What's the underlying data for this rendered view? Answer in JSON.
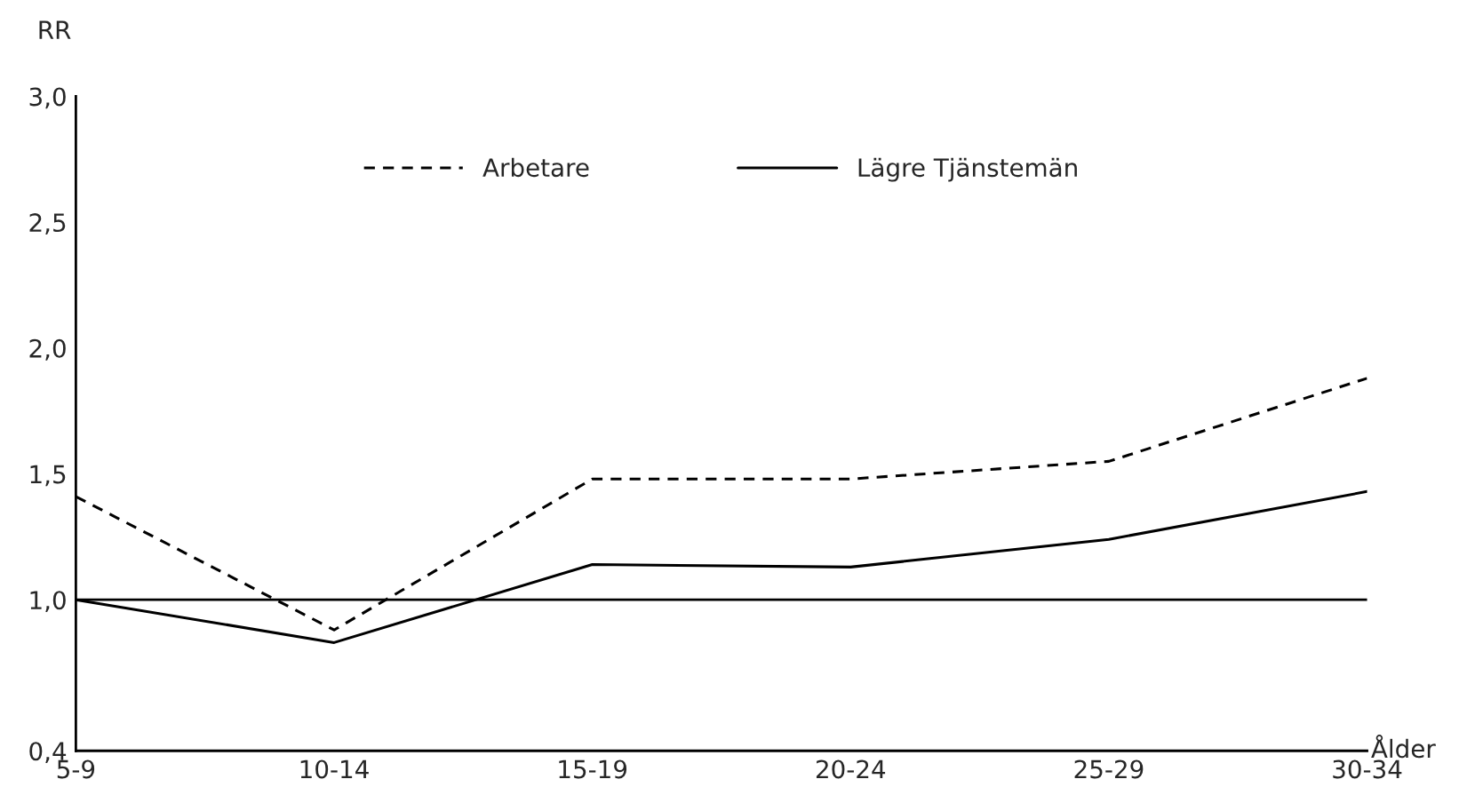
{
  "chart_data": {
    "type": "line",
    "ylabel": "RR",
    "xlabel": "Ålder",
    "categories": [
      "5-9",
      "10-14",
      "15-19",
      "20-24",
      "25-29",
      "30-34"
    ],
    "series": [
      {
        "name": "Arbetare",
        "color": "#000000",
        "line_style": "dashed",
        "values": [
          1.41,
          0.88,
          1.48,
          1.48,
          1.55,
          1.88
        ]
      },
      {
        "name": "Lägre Tjänstemän",
        "color": "#000000",
        "line_style": "solid",
        "values": [
          1.0,
          0.83,
          1.14,
          1.13,
          1.24,
          1.43
        ]
      }
    ],
    "ylim": [
      0.4,
      3.0
    ],
    "yticks": [
      {
        "value": 0.4,
        "label": "0,4"
      },
      {
        "value": 1.0,
        "label": "1,0"
      },
      {
        "value": 1.5,
        "label": "1,5"
      },
      {
        "value": 2.0,
        "label": "2,0"
      },
      {
        "value": 2.5,
        "label": "2,5"
      },
      {
        "value": 3.0,
        "label": "3,0"
      }
    ],
    "ref_lines": [
      {
        "axis": "y",
        "value": 1.0,
        "color": "#000000"
      }
    ],
    "grid": false,
    "legend": "top",
    "marker": "none"
  }
}
